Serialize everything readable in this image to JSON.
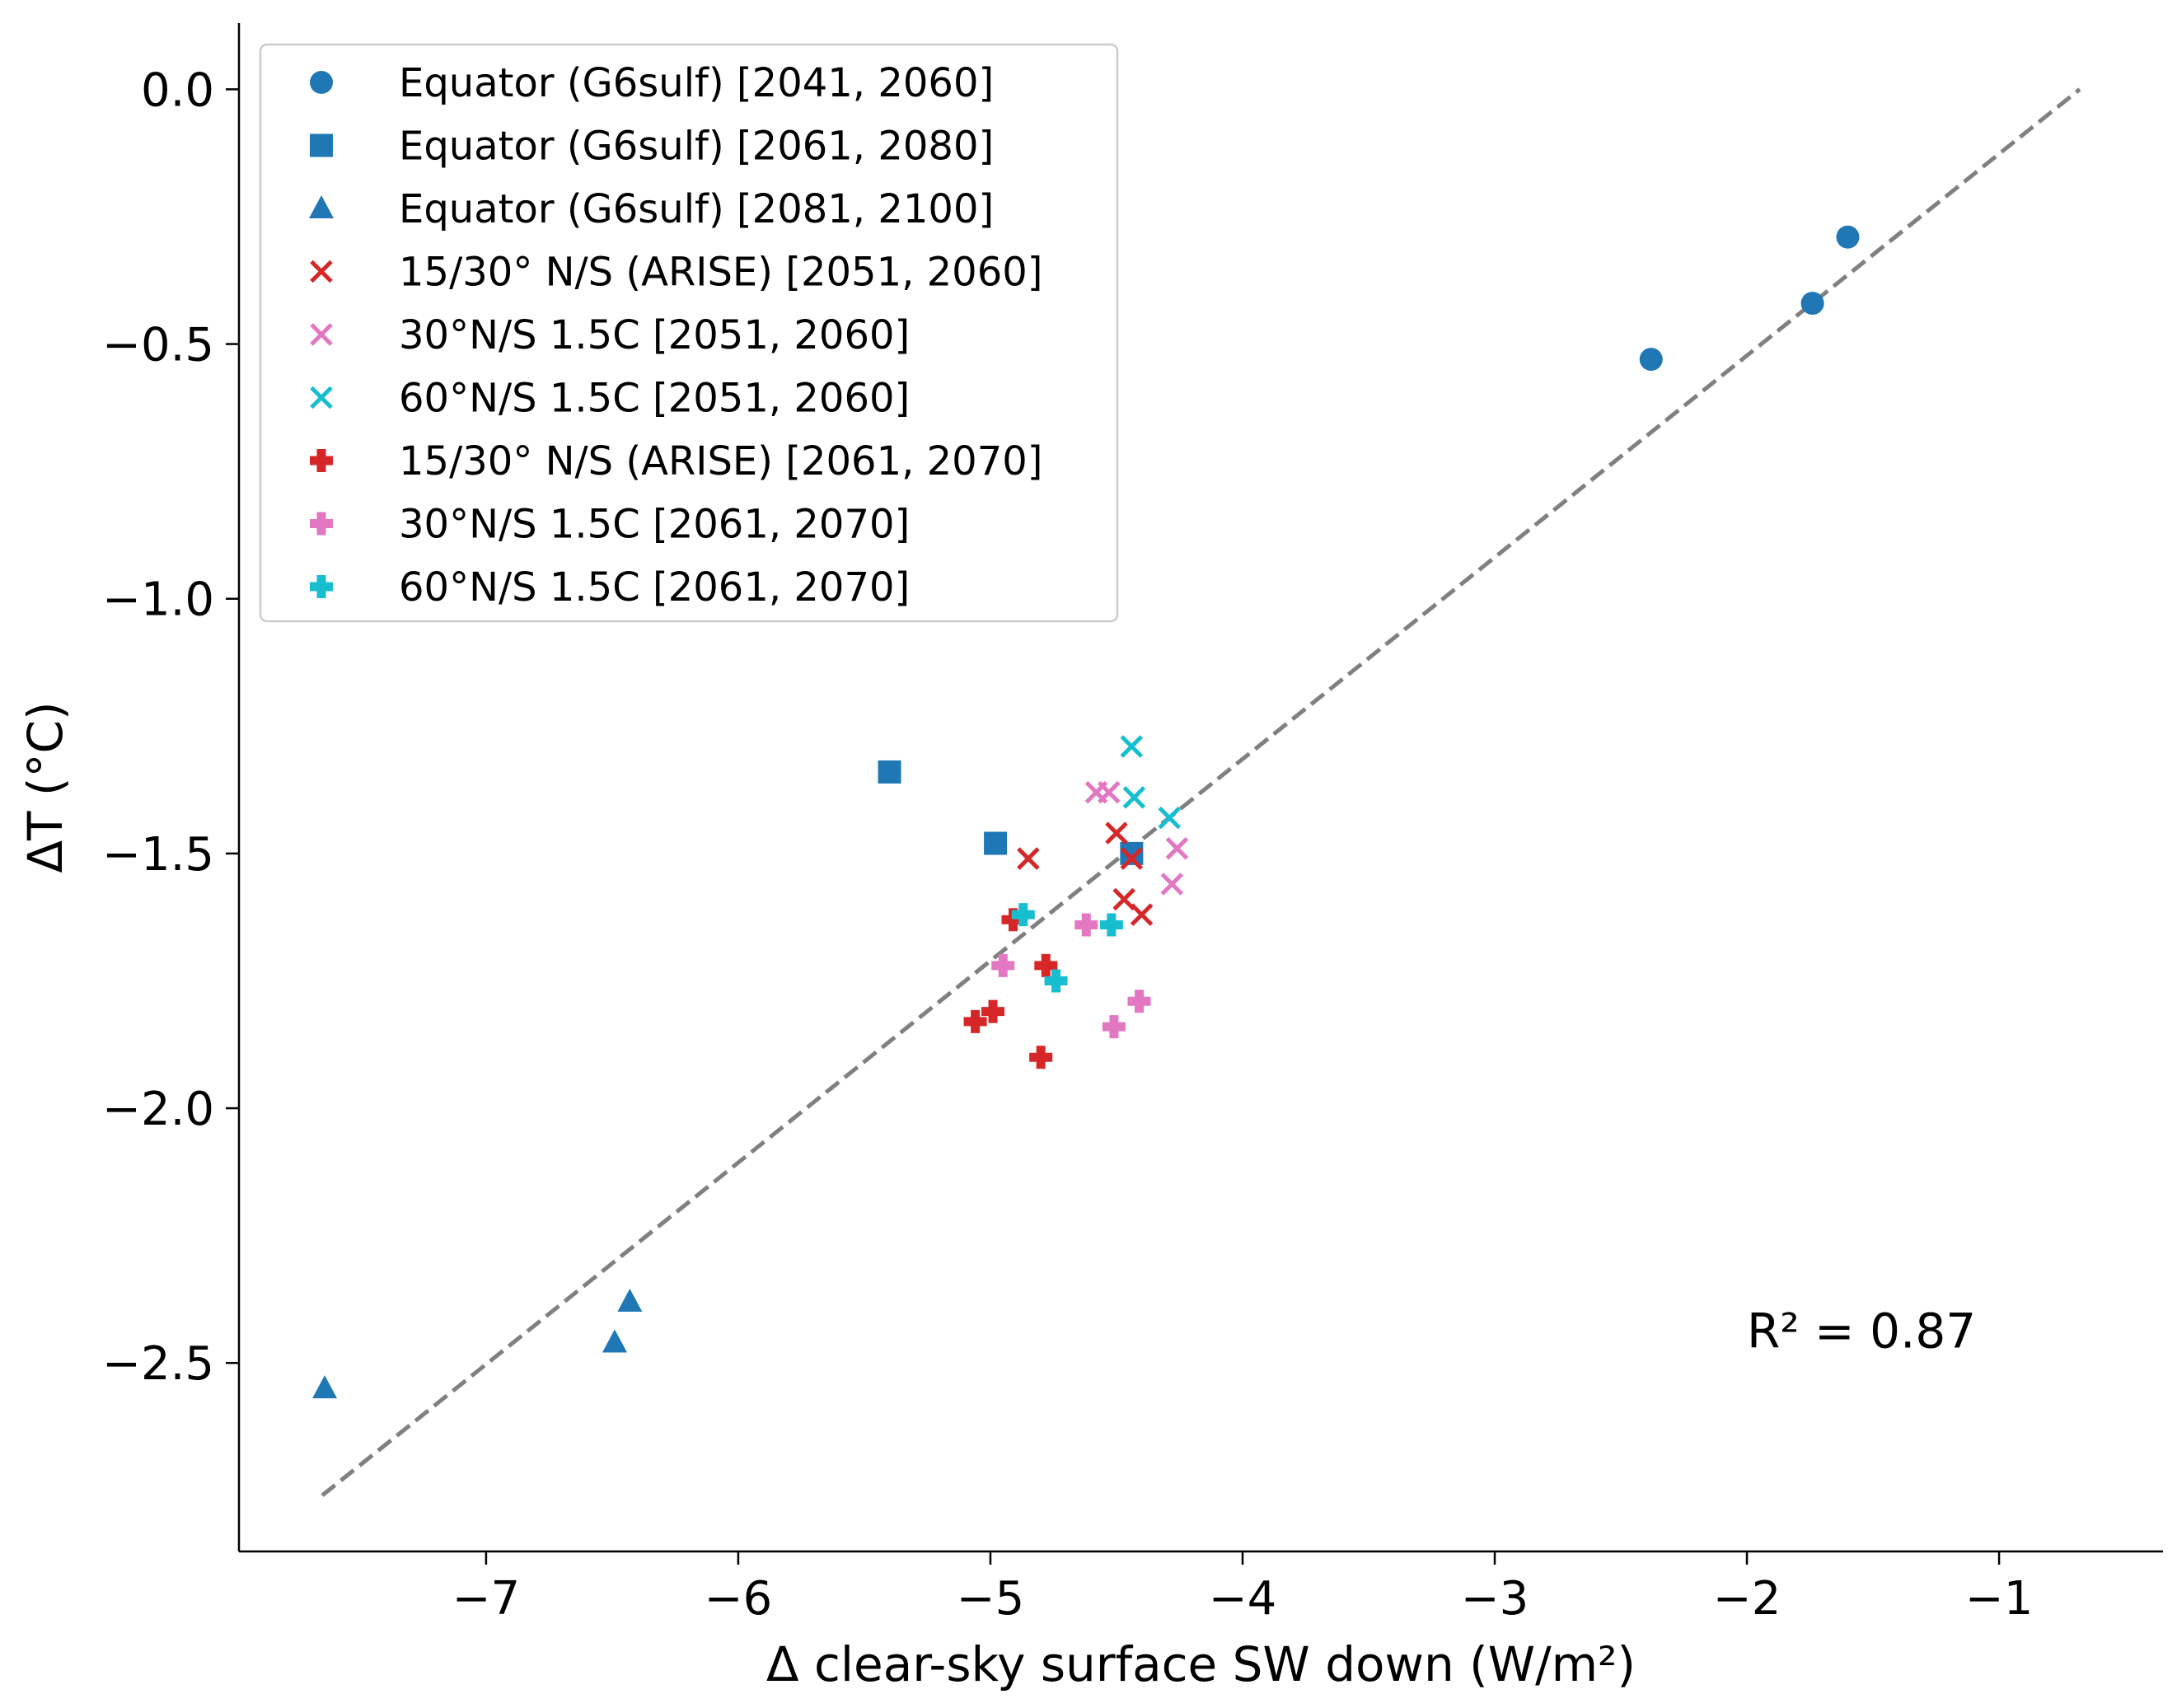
{
  "chart_data": {
    "type": "scatter",
    "xlabel": "Δ clear-sky surface SW down (W/m²)",
    "ylabel": "ΔT (°C)",
    "xlim": [
      -7.98,
      -0.35
    ],
    "ylim": [
      -2.87,
      0.13
    ],
    "x_ticks": [
      -7,
      -6,
      -5,
      -4,
      -3,
      -2,
      -1
    ],
    "y_ticks": [
      0.0,
      -0.5,
      -1.0,
      -1.5,
      -2.0,
      -2.5
    ],
    "x_tick_labels": [
      "−7",
      "−6",
      "−5",
      "−4",
      "−3",
      "−2",
      "−1"
    ],
    "y_tick_labels": [
      "0.0",
      "−0.5",
      "−1.0",
      "−1.5",
      "−2.0",
      "−2.5"
    ],
    "grid": false,
    "legend_position": "top-left",
    "annotation": "R² = 0.87",
    "annotation_position": {
      "x": -2.0,
      "y": -2.47
    },
    "fit_line": {
      "x": [
        -7.65,
        -0.68
      ],
      "y": [
        -2.76,
        0.0
      ],
      "color": "#808080",
      "style": "dashed"
    },
    "series": [
      {
        "name": "Equator (G6sulf) [2041, 2060]",
        "marker": "circle",
        "color": "#1f77b4",
        "x": [
          -2.38,
          -1.74,
          -1.6
        ],
        "y": [
          -0.53,
          -0.42,
          -0.29
        ]
      },
      {
        "name": "Equator (G6sulf) [2061, 2080]",
        "marker": "square",
        "color": "#1f77b4",
        "x": [
          -5.4,
          -4.98,
          -4.44
        ],
        "y": [
          -1.34,
          -1.48,
          -1.5
        ]
      },
      {
        "name": "Equator (G6sulf) [2081, 2100]",
        "marker": "triangle",
        "color": "#1f77b4",
        "x": [
          -7.64,
          -6.49,
          -6.43
        ],
        "y": [
          -2.55,
          -2.46,
          -2.38
        ]
      },
      {
        "name": "15/30° N/S (ARISE) [2051, 2060]",
        "marker": "x",
        "color": "#d62728",
        "x": [
          -4.85,
          -4.5,
          -4.44,
          -4.47,
          -4.4
        ],
        "y": [
          -1.51,
          -1.46,
          -1.51,
          -1.59,
          -1.62
        ]
      },
      {
        "name": "30°N/S 1.5C [2051, 2060]",
        "marker": "x",
        "color": "#e377c2",
        "x": [
          -4.58,
          -4.53,
          -4.26,
          -4.28
        ],
        "y": [
          -1.38,
          -1.38,
          -1.49,
          -1.56
        ]
      },
      {
        "name": "60°N/S 1.5C [2051, 2060]",
        "marker": "x",
        "color": "#17becf",
        "x": [
          -4.44,
          -4.43,
          -4.29
        ],
        "y": [
          -1.29,
          -1.39,
          -1.43
        ]
      },
      {
        "name": "15/30° N/S (ARISE) [2061, 2070]",
        "marker": "plus",
        "color": "#d62728",
        "x": [
          -4.91,
          -4.78,
          -4.99,
          -5.06,
          -4.8
        ],
        "y": [
          -1.63,
          -1.72,
          -1.81,
          -1.83,
          -1.9
        ]
      },
      {
        "name": "30°N/S 1.5C [2061, 2070]",
        "marker": "plus",
        "color": "#e377c2",
        "x": [
          -4.95,
          -4.62,
          -4.41,
          -4.51
        ],
        "y": [
          -1.72,
          -1.64,
          -1.79,
          -1.84
        ]
      },
      {
        "name": "60°N/S 1.5C [2061, 2070]",
        "marker": "plus",
        "color": "#17becf",
        "x": [
          -4.87,
          -4.52,
          -4.74
        ],
        "y": [
          -1.62,
          -1.64,
          -1.75
        ]
      }
    ]
  }
}
